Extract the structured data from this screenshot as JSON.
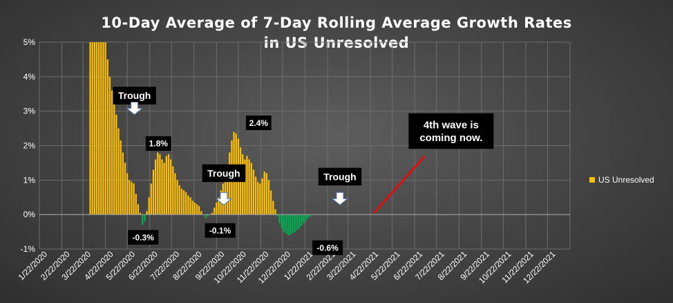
{
  "chart_data": {
    "type": "bar",
    "title": "10-Day Average of 7-Day Rolling Average Growth Rates",
    "subtitle": "in US Unresolved",
    "ylim": [
      -1,
      5
    ],
    "yticks": [
      "-1%",
      "0%",
      "1%",
      "2%",
      "3%",
      "4%",
      "5%"
    ],
    "ytick_values": [
      -1,
      0,
      1,
      2,
      3,
      4,
      5
    ],
    "x_tick_labels": [
      "1/22/2020",
      "2/22/2020",
      "3/22/2020",
      "4/22/2020",
      "5/22/2020",
      "6/22/2020",
      "7/22/2020",
      "8/22/2020",
      "9/22/2020",
      "10/22/2020",
      "11/22/2020",
      "12/22/2020",
      "1/22/2021",
      "2/22/2021",
      "3/22/2021",
      "4/22/2021",
      "5/22/2021",
      "6/22/2021",
      "7/22/2021",
      "8/22/2021",
      "9/22/2021",
      "10/22/2021",
      "11/22/2021",
      "12/22/2021"
    ],
    "grid": true,
    "legend_position": "right",
    "series": [
      {
        "name": "US Unresolved",
        "positive_color": "#ffc000",
        "negative_color": "#00b050",
        "x_start": "2020-04-01",
        "x_step_days": 3,
        "values": [
          5.0,
          5.0,
          5.0,
          5.0,
          5.0,
          5.0,
          5.0,
          5.0,
          4.5,
          4.0,
          3.6,
          3.25,
          2.9,
          2.5,
          2.15,
          1.8,
          1.5,
          1.2,
          1.0,
          0.95,
          0.9,
          0.6,
          0.3,
          0.05,
          -0.3,
          -0.2,
          0.1,
          0.5,
          0.9,
          1.3,
          1.6,
          1.8,
          1.75,
          1.6,
          1.5,
          1.7,
          1.75,
          1.6,
          1.4,
          1.2,
          1.0,
          0.85,
          0.75,
          0.7,
          0.65,
          0.55,
          0.5,
          0.4,
          0.35,
          0.3,
          0.25,
          0.1,
          0.0,
          -0.1,
          -0.05,
          0.0,
          0.05,
          0.2,
          0.35,
          0.5,
          0.7,
          0.9,
          1.15,
          1.45,
          1.8,
          2.15,
          2.4,
          2.35,
          2.2,
          1.95,
          1.75,
          1.6,
          1.7,
          1.6,
          1.5,
          1.3,
          1.1,
          0.95,
          0.9,
          1.05,
          1.25,
          1.2,
          1.0,
          0.7,
          0.4,
          0.15,
          -0.05,
          -0.25,
          -0.4,
          -0.5,
          -0.55,
          -0.6,
          -0.58,
          -0.55,
          -0.5,
          -0.45,
          -0.4,
          -0.33,
          -0.25,
          -0.18,
          -0.1,
          -0.05
        ]
      }
    ],
    "annotations": [
      {
        "text": "Trough",
        "kind": "arrow-label",
        "x": "2020-06-01",
        "y": 2.9,
        "y_label": 3.45
      },
      {
        "text": "1.8%",
        "kind": "value-label",
        "x": "2020-07-04",
        "y": 1.8
      },
      {
        "text": "-0.3%",
        "kind": "value-label",
        "x": "2020-06-13",
        "y": -0.3
      },
      {
        "text": "Trough",
        "kind": "arrow-label",
        "x": "2020-10-02",
        "y": 0.28,
        "y_label": 1.2
      },
      {
        "text": "-0.1%",
        "kind": "value-label",
        "x": "2020-09-27",
        "y": -0.1
      },
      {
        "text": "2.4%",
        "kind": "value-label",
        "x": "2020-11-19",
        "y": 2.4
      },
      {
        "text": "Trough",
        "kind": "arrow-label",
        "x": "2021-03-11",
        "y": 0.28,
        "y_label": 1.1
      },
      {
        "text": "-0.6%",
        "kind": "value-label",
        "x": "2021-02-22",
        "y": -0.6
      },
      {
        "text": "4th wave is\ncoming now.",
        "kind": "callout-line",
        "x_from": "2021-04-27",
        "y_from": 0.05,
        "x_to": "2021-07-06",
        "y_to": 1.7
      }
    ]
  },
  "legend": {
    "label": "US Unresolved",
    "color": "#ffc000"
  }
}
